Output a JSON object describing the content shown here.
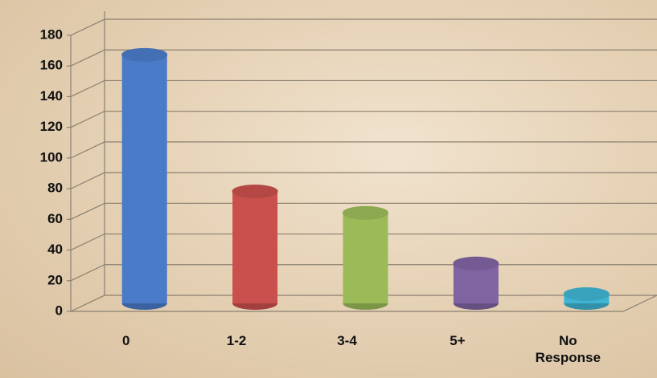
{
  "chart_data": {
    "type": "bar3d",
    "categories": [
      "0",
      "1-2",
      "3-4",
      "5+",
      "No Response"
    ],
    "values": [
      162,
      73,
      59,
      26,
      6
    ],
    "colors": [
      "#4a7bc8",
      "#c9504d",
      "#9bbb59",
      "#8064a2",
      "#3fb5d3"
    ],
    "ylim": [
      0,
      180
    ],
    "yticks": [
      0,
      20,
      40,
      60,
      80,
      100,
      120,
      140,
      160,
      180
    ],
    "grid": true
  }
}
